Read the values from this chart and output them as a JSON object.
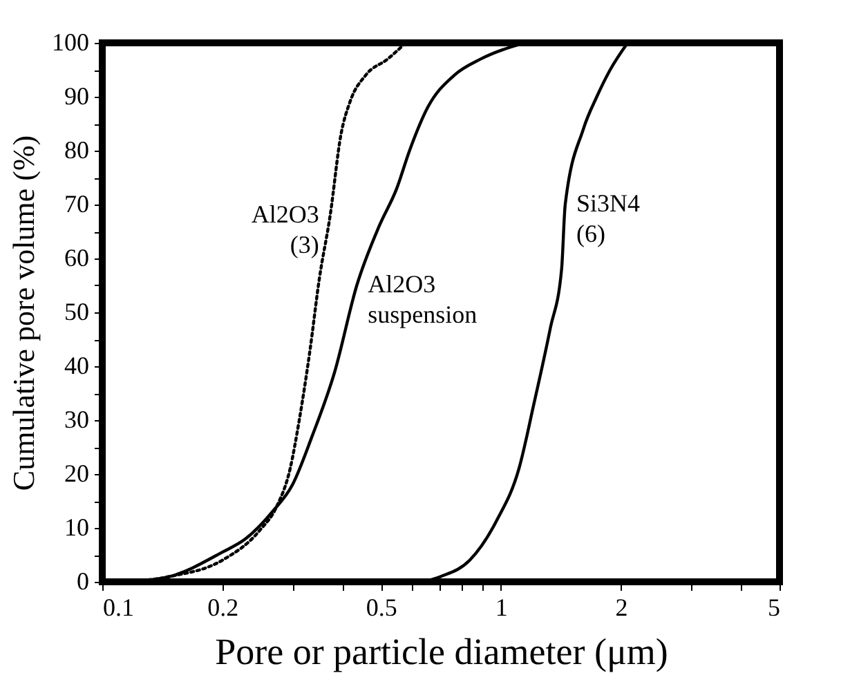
{
  "chart_data": {
    "type": "line",
    "xlabel": "Pore or particle diameter (μm)",
    "ylabel": "Cumulative pore volume (%)",
    "log": "x",
    "grid": false,
    "legend": false,
    "marker": "none",
    "xlim": [
      0.1,
      5
    ],
    "xticks": [
      0.1,
      0.2,
      {
        "value": 0.3,
        "label": null
      },
      {
        "value": 0.4,
        "label": null
      },
      0.5,
      {
        "value": 0.6,
        "label": null
      },
      {
        "value": 0.7,
        "label": null
      },
      {
        "value": 0.8,
        "label": null
      },
      {
        "value": 0.9,
        "label": null
      },
      1,
      2,
      {
        "value": 3,
        "label": null
      },
      {
        "value": 4,
        "label": null
      },
      5
    ],
    "ylim": [
      0,
      100
    ],
    "yticks": [
      0,
      {
        "value": 5,
        "label": null
      },
      10,
      {
        "value": 15,
        "label": null
      },
      20,
      {
        "value": 25,
        "label": null
      },
      30,
      {
        "value": 35,
        "label": null
      },
      40,
      {
        "value": 45,
        "label": null
      },
      50,
      {
        "value": 55,
        "label": null
      },
      60,
      {
        "value": 65,
        "label": null
      },
      70,
      {
        "value": 75,
        "label": null
      },
      80,
      {
        "value": 85,
        "label": null
      },
      90,
      {
        "value": 95,
        "label": null
      },
      100
    ],
    "series": [
      {
        "name": "Al2O3 (3)",
        "color": "#000000",
        "line_style": "dotted",
        "x": [
          0.117,
          0.148,
          0.2,
          0.248,
          0.274,
          0.296,
          0.312,
          0.332,
          0.35,
          0.373,
          0.397,
          0.418,
          0.458,
          0.52,
          0.577
        ],
        "values": [
          0,
          1,
          4,
          9.5,
          14,
          21,
          30,
          43,
          56,
          68,
          83,
          89,
          94,
          97,
          100
        ]
      },
      {
        "name": "Al2O3 suspension",
        "color": "#000000",
        "line_style": "solid",
        "x": [
          0.117,
          0.148,
          0.2,
          0.229,
          0.267,
          0.3,
          0.336,
          0.383,
          0.435,
          0.495,
          0.548,
          0.59,
          0.655,
          0.764,
          0.89,
          1.15
        ],
        "values": [
          0,
          1,
          5.5,
          8,
          13,
          18,
          27,
          39,
          55,
          66,
          73,
          80,
          88,
          94,
          97,
          100
        ]
      },
      {
        "name": "Si3N4 (6)",
        "color": "#000000",
        "line_style": "solid",
        "x": [
          0.64,
          0.707,
          0.835,
          0.978,
          1.11,
          1.21,
          1.33,
          1.42,
          1.45,
          1.61,
          1.74,
          1.88,
          2.08
        ],
        "values": [
          0,
          1,
          4,
          11.5,
          21,
          33,
          47,
          58,
          70,
          84,
          90,
          95,
          100
        ]
      }
    ]
  }
}
